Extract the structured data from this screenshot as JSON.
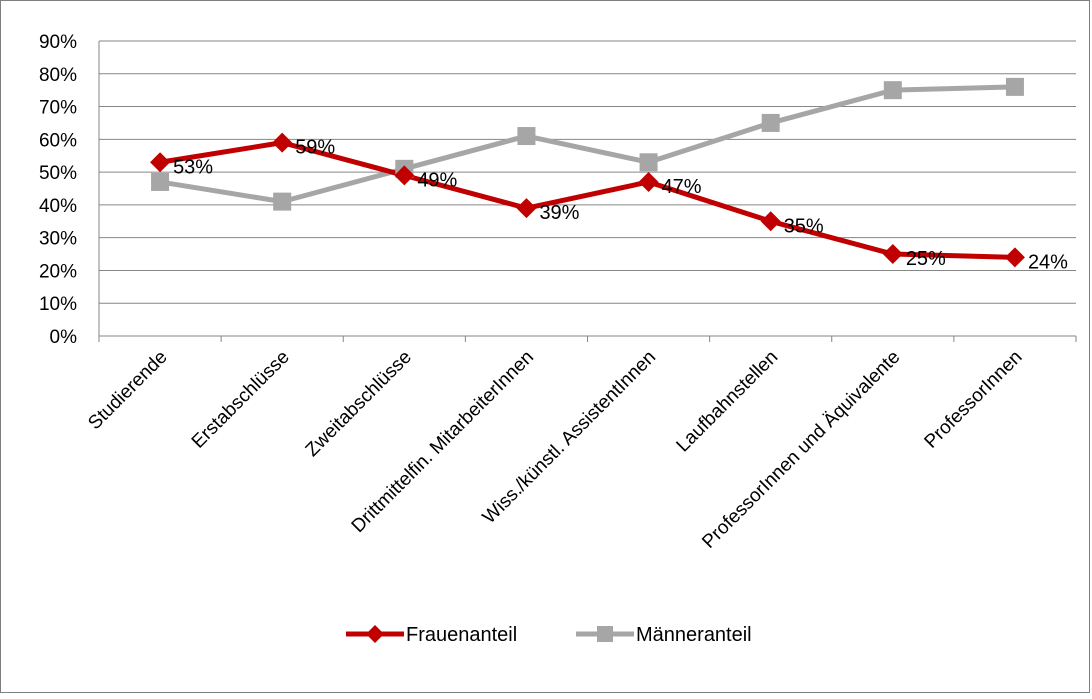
{
  "chart_data": {
    "type": "line",
    "title": "",
    "xlabel": "",
    "ylabel": "",
    "ylim": [
      0,
      90
    ],
    "y_ticks": [
      "0%",
      "10%",
      "20%",
      "30%",
      "40%",
      "50%",
      "60%",
      "70%",
      "80%",
      "90%"
    ],
    "categories": [
      "Studierende",
      "Erstabschlüsse",
      "Zweitabschlüsse",
      "Drittmittelfin. MitarbeiterInnen",
      "Wiss./künstl. AssistentInnen",
      "Laufbahnstellen",
      "ProfessorInnen und Äquivalente",
      "ProfessorInnen"
    ],
    "series": [
      {
        "name": "Frauenanteil",
        "color": "#c00000",
        "marker": "diamond",
        "values": [
          53,
          59,
          49,
          39,
          47,
          35,
          25,
          24
        ],
        "labels": [
          "53%",
          "59%",
          "49%",
          "39%",
          "47%",
          "35%",
          "25%",
          "24%"
        ]
      },
      {
        "name": "Männeranteil",
        "color": "#a6a6a6",
        "marker": "square",
        "values": [
          47,
          41,
          51,
          61,
          53,
          65,
          75,
          76
        ]
      }
    ],
    "grid": true,
    "legend": "bottom"
  }
}
